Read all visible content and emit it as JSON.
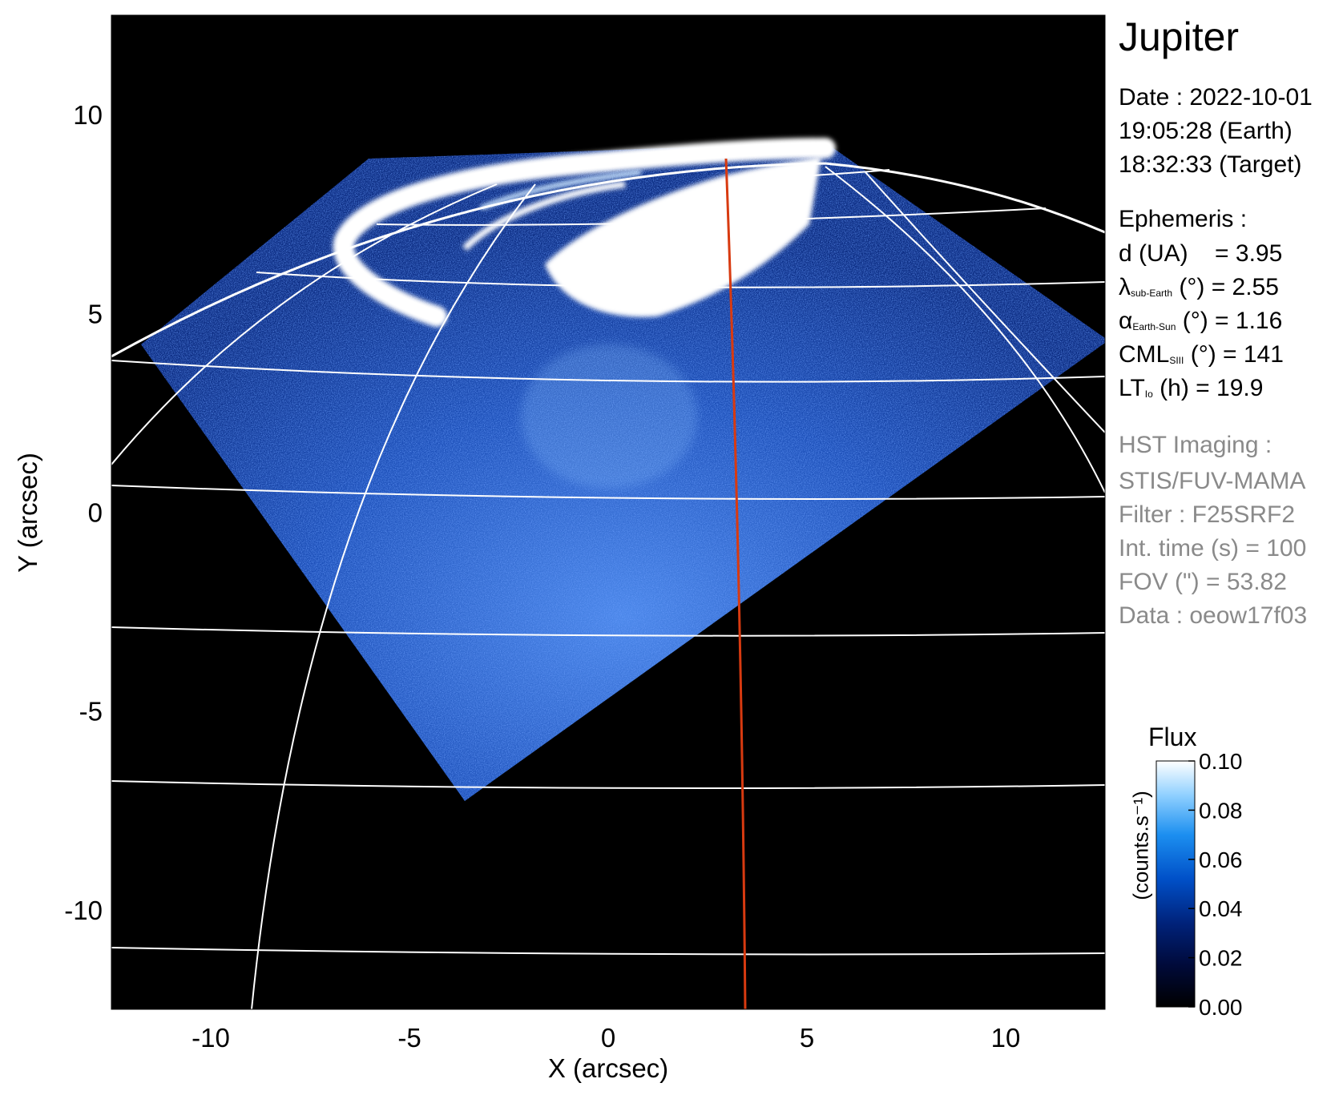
{
  "chart_data": {
    "type": "heatmap",
    "title": "Jupiter",
    "xlabel": "X (arcsec)",
    "ylabel": "Y (arcsec)",
    "xlim": [
      -12.5,
      12.5
    ],
    "ylim": [
      -12.5,
      12.5
    ],
    "x_ticks": [
      -10,
      -5,
      0,
      5,
      10
    ],
    "y_ticks": [
      10,
      5,
      0,
      -5,
      -10
    ],
    "x_tick_labels": [
      "-10",
      "-5",
      "0",
      "5",
      "10"
    ],
    "y_tick_labels": [
      "10",
      "5",
      "0",
      "-5",
      "-10"
    ],
    "colorbar": {
      "title": "Flux",
      "unit": "(counts.s⁻¹)",
      "range": [
        0.0,
        0.1
      ],
      "ticks": [
        0.1,
        0.08,
        0.06,
        0.04,
        0.02,
        0.0
      ],
      "tick_labels": [
        "0.10",
        "0.08",
        "0.06",
        "0.04",
        "0.02",
        "0.00"
      ],
      "colors": [
        "#000000",
        "#000a3a",
        "#00227a",
        "#0050c8",
        "#1c8ff0",
        "#8fd0ff",
        "#ffffff"
      ]
    },
    "grid": true,
    "background_color": "#000000",
    "grid_color": "#ffffff",
    "meridian_color": "#d83a10"
  },
  "info": {
    "date_line": "Date : 2022-10-01",
    "earth_time": "19:05:28 (Earth)",
    "target_time": "18:32:33 (Target)",
    "ephemeris_header": "Ephemeris :",
    "d_label": "d (UA)",
    "d_value": "= 3.95",
    "lat_symbol": "λ",
    "lat_sub": "sub-Earth",
    "lat_rest": "(°) = 2.55",
    "alpha_symbol": "α",
    "alpha_sub": "Earth-Sun",
    "alpha_rest": "(°) = 1.16",
    "cml_symbol": "CML",
    "cml_sub": "SIII",
    "cml_rest": "(°) = 141",
    "lt_symbol": "LT",
    "lt_sub": "Io",
    "lt_rest": "(h) = 19.9",
    "hst_header": "HST Imaging :",
    "instrument": "STIS/FUV-MAMA",
    "filter": "Filter : F25SRF2",
    "int_time": "Int. time (s) = 100",
    "fov": "FOV (\") = 53.82",
    "data_id": "Data : oeow17f03"
  }
}
